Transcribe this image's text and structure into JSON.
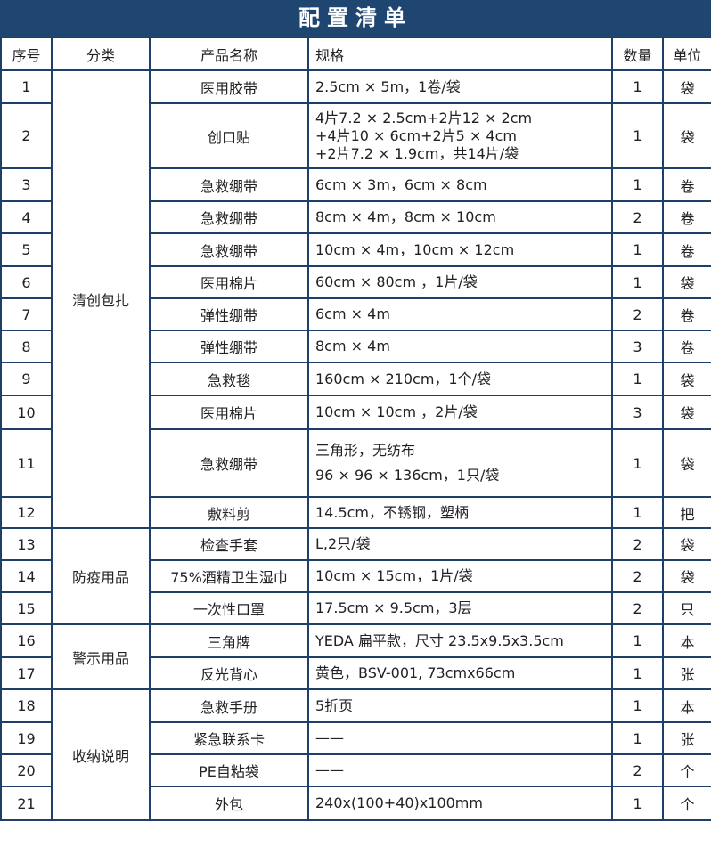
{
  "title": "配置清单",
  "colors": {
    "title_bg": "#1f4670",
    "border": "#1f3f66"
  },
  "headers": {
    "index": "序号",
    "category": "分类",
    "name": "产品名称",
    "spec": "规格",
    "qty": "数量",
    "unit": "单位"
  },
  "categories": [
    {
      "label": "清创包扎",
      "rows": 12
    },
    {
      "label": "防疫用品",
      "rows": 3
    },
    {
      "label": "警示用品",
      "rows": 2
    },
    {
      "label": "收纳说明",
      "rows": 4
    }
  ],
  "rows": [
    {
      "index": "1",
      "name": "医用胶带",
      "spec": [
        "2.5cm × 5m，1卷/袋"
      ],
      "qty": "1",
      "unit": "袋"
    },
    {
      "index": "2",
      "name": "创口贴",
      "spec": [
        "4片7.2 × 2.5cm+2片12 × 2cm",
        "+4片10 × 6cm+2片5 × 4cm",
        "+2片7.2 × 1.9cm，共14片/袋"
      ],
      "qty": "1",
      "unit": "袋"
    },
    {
      "index": "3",
      "name": "急救绷带",
      "spec": [
        "6cm × 3m，6cm × 8cm"
      ],
      "qty": "1",
      "unit": "卷"
    },
    {
      "index": "4",
      "name": "急救绷带",
      "spec": [
        "8cm × 4m，8cm × 10cm"
      ],
      "qty": "2",
      "unit": "卷"
    },
    {
      "index": "5",
      "name": "急救绷带",
      "spec": [
        "10cm × 4m，10cm × 12cm"
      ],
      "qty": "1",
      "unit": "卷"
    },
    {
      "index": "6",
      "name": "医用棉片",
      "spec": [
        "60cm × 80cm ，1片/袋"
      ],
      "qty": "1",
      "unit": "袋"
    },
    {
      "index": "7",
      "name": "弹性绷带",
      "spec": [
        "6cm × 4m"
      ],
      "qty": "2",
      "unit": "卷"
    },
    {
      "index": "8",
      "name": "弹性绷带",
      "spec": [
        "8cm × 4m"
      ],
      "qty": "3",
      "unit": "卷"
    },
    {
      "index": "9",
      "name": "急救毯",
      "spec": [
        "160cm × 210cm，1个/袋"
      ],
      "qty": "1",
      "unit": "袋"
    },
    {
      "index": "10",
      "name": "医用棉片",
      "spec": [
        "10cm × 10cm ，2片/袋"
      ],
      "qty": "3",
      "unit": "袋"
    },
    {
      "index": "11",
      "name": "急救绷带",
      "spec": [
        "三角形，无纺布",
        "96 × 96 × 136cm，1只/袋"
      ],
      "qty": "1",
      "unit": "袋"
    },
    {
      "index": "12",
      "name": "敷料剪",
      "spec": [
        "14.5cm，不锈钢，塑柄"
      ],
      "qty": "1",
      "unit": "把"
    },
    {
      "index": "13",
      "name": "检查手套",
      "spec": [
        "L,2只/袋"
      ],
      "qty": "2",
      "unit": "袋"
    },
    {
      "index": "14",
      "name": "75%酒精卫生湿巾",
      "spec": [
        "10cm × 15cm，1片/袋"
      ],
      "qty": "2",
      "unit": "袋"
    },
    {
      "index": "15",
      "name": "一次性口罩",
      "spec": [
        "17.5cm × 9.5cm，3层"
      ],
      "qty": "2",
      "unit": "只"
    },
    {
      "index": "16",
      "name": "三角牌",
      "spec": [
        "YEDA 扁平款，尺寸 23.5x9.5x3.5cm"
      ],
      "qty": "1",
      "unit": "本"
    },
    {
      "index": "17",
      "name": "反光背心",
      "spec": [
        "黄色，BSV-001, 73cmx66cm"
      ],
      "qty": "1",
      "unit": "张"
    },
    {
      "index": "18",
      "name": "急救手册",
      "spec": [
        "5折页"
      ],
      "qty": "1",
      "unit": "本"
    },
    {
      "index": "19",
      "name": "紧急联系卡",
      "spec": [
        "——"
      ],
      "qty": "1",
      "unit": "张"
    },
    {
      "index": "20",
      "name": "PE自粘袋",
      "spec": [
        "——"
      ],
      "qty": "2",
      "unit": "个"
    },
    {
      "index": "21",
      "name": "外包",
      "spec": [
        "240x(100+40)x100mm"
      ],
      "qty": "1",
      "unit": "个"
    }
  ]
}
